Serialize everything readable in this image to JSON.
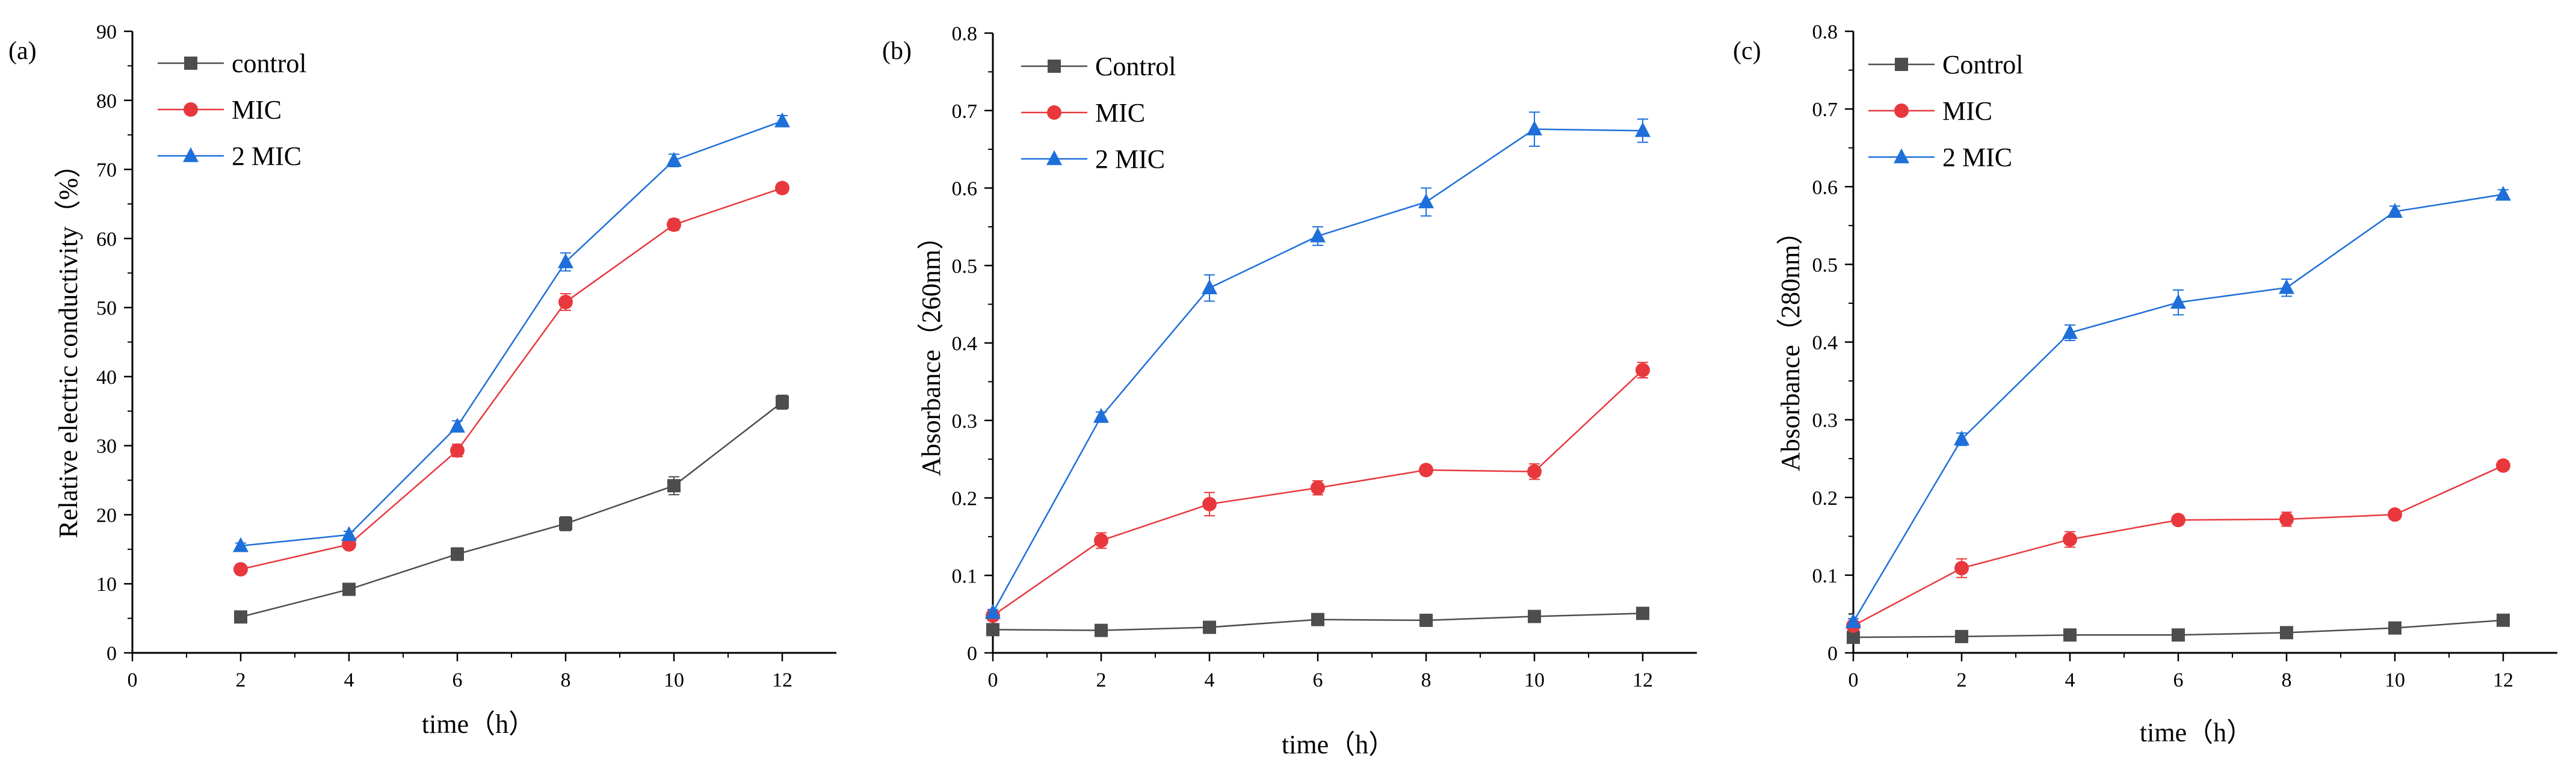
{
  "figure": {
    "panels": [
      {
        "label": "(a)",
        "xlabel": "time（h）",
        "ylabel": "Relative electric conductivity（%）"
      },
      {
        "label": "(b)",
        "xlabel": "time（h）",
        "ylabel": "Absorbance（260nm）"
      },
      {
        "label": "(c)",
        "xlabel": "time（h）",
        "ylabel": "Absorbance（280nm）"
      }
    ]
  },
  "chart_data": [
    {
      "type": "line",
      "panel_label": "(a)",
      "title": "",
      "xlabel": "time（h）",
      "ylabel": "Relative electric conductivity（%）",
      "xlim": [
        0,
        13
      ],
      "ylim": [
        0,
        90
      ],
      "xticks": [
        0,
        2,
        4,
        6,
        8,
        10,
        12
      ],
      "yticks": [
        0,
        10,
        20,
        30,
        40,
        50,
        60,
        70,
        80,
        90
      ],
      "x": [
        2,
        4,
        6,
        8,
        10,
        12
      ],
      "legend_position": "top-left",
      "series": [
        {
          "name": "control",
          "color": "#4d4d4d",
          "marker": "square",
          "values": [
            5.2,
            9.2,
            14.3,
            18.7,
            24.2,
            36.3
          ],
          "errors": [
            0.5,
            0.6,
            0.9,
            1.0,
            1.3,
            1.0
          ]
        },
        {
          "name": "MIC",
          "color": "#e8383d",
          "marker": "circle",
          "values": [
            12.1,
            15.7,
            29.3,
            50.8,
            62.0,
            67.3
          ],
          "errors": [
            0.5,
            0.6,
            0.9,
            1.2,
            0.8,
            0.7
          ]
        },
        {
          "name": "2 MIC",
          "color": "#1e6fd9",
          "marker": "triangle",
          "values": [
            15.5,
            17.1,
            32.8,
            56.6,
            71.3,
            77.0
          ],
          "errors": [
            0.4,
            0.5,
            0.8,
            1.3,
            0.9,
            0.8
          ]
        }
      ]
    },
    {
      "type": "line",
      "panel_label": "(b)",
      "title": "",
      "xlabel": "time（h）",
      "ylabel": "Absorbance（260nm）",
      "xlim": [
        0,
        13
      ],
      "ylim": [
        0,
        0.8
      ],
      "xticks": [
        0,
        2,
        4,
        6,
        8,
        10,
        12
      ],
      "yticks": [
        0,
        0.1,
        0.2,
        0.3,
        0.4,
        0.5,
        0.6,
        0.7,
        0.8
      ],
      "x": [
        0,
        2,
        4,
        6,
        8,
        10,
        12
      ],
      "legend_position": "top-left",
      "series": [
        {
          "name": "Control",
          "color": "#4d4d4d",
          "marker": "square",
          "values": [
            0.03,
            0.029,
            0.033,
            0.043,
            0.042,
            0.047,
            0.051
          ],
          "errors": [
            0.003,
            0.003,
            0.003,
            0.004,
            0.004,
            0.004,
            0.004
          ]
        },
        {
          "name": "MIC",
          "color": "#e8383d",
          "marker": "circle",
          "values": [
            0.048,
            0.145,
            0.192,
            0.213,
            0.236,
            0.234,
            0.365
          ],
          "errors": [
            0.004,
            0.01,
            0.015,
            0.009,
            0.006,
            0.01,
            0.01
          ]
        },
        {
          "name": "2 MIC",
          "color": "#1e6fd9",
          "marker": "triangle",
          "values": [
            0.052,
            0.305,
            0.471,
            0.538,
            0.582,
            0.676,
            0.674
          ],
          "errors": [
            0.004,
            0.006,
            0.017,
            0.012,
            0.018,
            0.022,
            0.015
          ]
        }
      ]
    },
    {
      "type": "line",
      "panel_label": "(c)",
      "title": "",
      "xlabel": "time（h）",
      "ylabel": "Absorbance（280nm）",
      "xlim": [
        0,
        13
      ],
      "ylim": [
        0,
        0.8
      ],
      "xticks": [
        0,
        2,
        4,
        6,
        8,
        10,
        12
      ],
      "yticks": [
        0,
        0.1,
        0.2,
        0.3,
        0.4,
        0.5,
        0.6,
        0.7,
        0.8
      ],
      "x": [
        0,
        2,
        4,
        6,
        8,
        10,
        12
      ],
      "legend_position": "top-left",
      "series": [
        {
          "name": "Control",
          "color": "#4d4d4d",
          "marker": "square",
          "values": [
            0.02,
            0.021,
            0.023,
            0.023,
            0.026,
            0.032,
            0.042
          ],
          "errors": [
            0.002,
            0.003,
            0.003,
            0.003,
            0.003,
            0.003,
            0.003
          ]
        },
        {
          "name": "MIC",
          "color": "#e8383d",
          "marker": "circle",
          "values": [
            0.035,
            0.109,
            0.146,
            0.171,
            0.172,
            0.178,
            0.241
          ],
          "errors": [
            0.004,
            0.012,
            0.01,
            0.006,
            0.009,
            0.006,
            0.006
          ]
        },
        {
          "name": "2 MIC",
          "color": "#1e6fd9",
          "marker": "triangle",
          "values": [
            0.04,
            0.275,
            0.412,
            0.451,
            0.47,
            0.568,
            0.59
          ],
          "errors": [
            0.004,
            0.008,
            0.01,
            0.016,
            0.011,
            0.007,
            0.006
          ]
        }
      ]
    }
  ]
}
